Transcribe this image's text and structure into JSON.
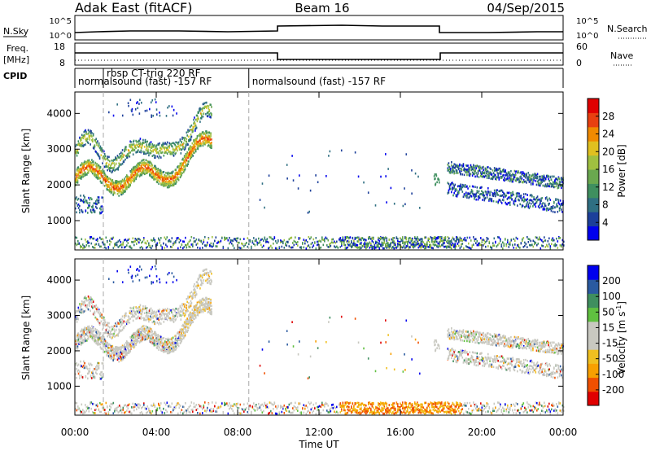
{
  "header": {
    "radar": "Adak East (fitACF)",
    "beam": "Beam 16",
    "date": "04/Sep/2015"
  },
  "top_panels": {
    "nsky_label": "N.Sky",
    "nsearch_label": "N.Search",
    "noise_ticks_left": [
      "10^5",
      "10^0"
    ],
    "noise_ticks_right": [
      "10^5",
      "10^0"
    ],
    "freq_label": "Freq.",
    "freq_unit": "[MHz]",
    "freq_ticks": [
      "18",
      "8"
    ],
    "nave_label": "Nave",
    "nave_ticks": [
      "60",
      "0"
    ],
    "cpid_label": "CPID"
  },
  "cpid_segments": [
    {
      "start_hour": 0.0,
      "end_hour": 1.4,
      "text": "normalsound (fast) -157 RF",
      "row": 2
    },
    {
      "start_hour": 1.4,
      "end_hour": 8.55,
      "text": "rbsp CT-trig 220 RF",
      "row": 1
    },
    {
      "start_hour": 8.55,
      "end_hour": 24.0,
      "text": "normalsound (fast) -157 RF",
      "row": 2
    }
  ],
  "colors": {
    "power": [
      "#0000ee",
      "#1c3f9a",
      "#2f6f82",
      "#3f8f5f",
      "#6aa84f",
      "#a0c040",
      "#e0c020",
      "#f08a00",
      "#e84010",
      "#e00000"
    ],
    "velocity": [
      "#e00000",
      "#f05000",
      "#f8a000",
      "#f0c020",
      "#c8c8c0",
      "#c8c8c0",
      "#60c040",
      "#3f8f5f",
      "#2a5aa0",
      "#0000ee"
    ],
    "gray_scatter": "#c8c8c0",
    "marker_line": "#a8a8a8"
  },
  "chart_data": [
    {
      "type": "heatmap",
      "name": "power",
      "xlabel": "",
      "ylabel": "Slant Range [km]",
      "xlim": [
        0,
        24
      ],
      "ylim": [
        180,
        4600
      ],
      "yticks": [
        1000,
        2000,
        3000,
        4000
      ],
      "colorbar": {
        "label": "Power [dB]",
        "range": [
          0,
          32
        ],
        "ticks": [
          "4",
          "8",
          "12",
          "16",
          "20",
          "24",
          "28"
        ]
      },
      "features": [
        {
          "name": "evening band",
          "hours": [
            0.0,
            6.7
          ],
          "ranges_km": [
            1000,
            3500
          ],
          "power_db_typical": 18
        },
        {
          "name": "near range clutter",
          "hours": [
            0.0,
            24.0
          ],
          "ranges_km": [
            180,
            500
          ],
          "power_db_typical": 10
        },
        {
          "name": "dawn bands",
          "hours": [
            18.3,
            24.0
          ],
          "ranges_km": [
            1200,
            2500
          ],
          "power_db_typical": 8
        }
      ]
    },
    {
      "type": "heatmap",
      "name": "velocity",
      "xlabel": "Time UT",
      "ylabel": "Slant Range [km]",
      "xlim": [
        0,
        24
      ],
      "ylim": [
        180,
        4600
      ],
      "yticks": [
        1000,
        2000,
        3000,
        4000
      ],
      "xticks": [
        "00:00",
        "04:00",
        "08:00",
        "12:00",
        "16:00",
        "20:00",
        "00:00"
      ],
      "colorbar": {
        "label": "Velocity [m s-1]",
        "label_main": "Velocity [m s",
        "label_exp": "-1",
        "label_end": "]",
        "ticks": [
          "200",
          "100",
          "50",
          "15",
          "-15",
          "-50",
          "-100",
          "-200"
        ]
      }
    }
  ]
}
